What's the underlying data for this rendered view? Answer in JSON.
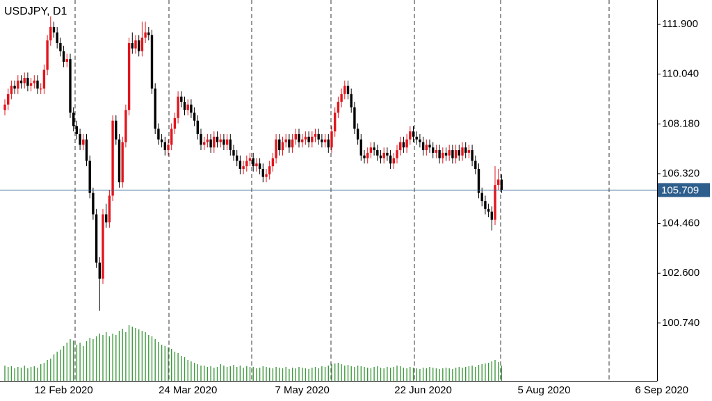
{
  "chart_data": {
    "type": "candlestick",
    "title": "USDJPY, D1",
    "categories": [
      null,
      null,
      null,
      null,
      null,
      null,
      null,
      null,
      null,
      null,
      null,
      null,
      null,
      null,
      null,
      null,
      null,
      null,
      "12 Feb 2020",
      null,
      null,
      null,
      null,
      null,
      null,
      null,
      null,
      null,
      null,
      null,
      null,
      null,
      null,
      null,
      null,
      null,
      null,
      null,
      null,
      null,
      null,
      null,
      null,
      null,
      null,
      null,
      null,
      null,
      null,
      null,
      null,
      null,
      null,
      null,
      null,
      null,
      "24 Mar 2020",
      null,
      null,
      null,
      null,
      null,
      null,
      null,
      null,
      null,
      null,
      null,
      null,
      null,
      null,
      null,
      null,
      null,
      null,
      null,
      null,
      null,
      null,
      null,
      null,
      null,
      null,
      null,
      null,
      null,
      null,
      null,
      null,
      null,
      null,
      "7 May 2020",
      null,
      null,
      null,
      null,
      null,
      null,
      null,
      null,
      null,
      null,
      null,
      null,
      null,
      null,
      null,
      null,
      null,
      null,
      null,
      null,
      null,
      null,
      null,
      null,
      null,
      null,
      null,
      null,
      null,
      null,
      null,
      null,
      null,
      null,
      null,
      null,
      "22 Jun 2020",
      null,
      null,
      null,
      null,
      null,
      null,
      null,
      null,
      null,
      null,
      null,
      null,
      null,
      null,
      null,
      null,
      null,
      null,
      null,
      null,
      null,
      null,
      null,
      null,
      null,
      null,
      null,
      null,
      null,
      null,
      null,
      null,
      null,
      null,
      null,
      null,
      "5 Aug 2020",
      null,
      null,
      null,
      null,
      null,
      null,
      null,
      null,
      null,
      null,
      null,
      null,
      null,
      null,
      null,
      null,
      null,
      null,
      null,
      null,
      null,
      null,
      null,
      null,
      null,
      null,
      null,
      null,
      null,
      null,
      null,
      null,
      null,
      null,
      null,
      "6 Sep 2020"
    ],
    "ohlc": [
      [
        108.7,
        109.1,
        108.5,
        108.9
      ],
      [
        108.9,
        109.5,
        108.7,
        109.3
      ],
      [
        109.3,
        109.8,
        109.1,
        109.6
      ],
      [
        109.6,
        109.8,
        109.3,
        109.5
      ],
      [
        109.5,
        110.0,
        109.3,
        109.8
      ],
      [
        109.8,
        110.0,
        109.5,
        109.7
      ],
      [
        109.7,
        110.1,
        109.5,
        109.9
      ],
      [
        109.9,
        110.1,
        109.4,
        109.6
      ],
      [
        109.6,
        109.9,
        109.4,
        109.7
      ],
      [
        109.7,
        110.0,
        109.5,
        109.8
      ],
      [
        109.8,
        110.0,
        109.3,
        109.5
      ],
      [
        109.5,
        109.7,
        109.3,
        109.5
      ],
      [
        109.5,
        110.4,
        109.3,
        110.2
      ],
      [
        110.2,
        111.5,
        110.0,
        111.3
      ],
      [
        111.3,
        112.2,
        111.1,
        111.8
      ],
      [
        111.8,
        112.0,
        111.4,
        111.6
      ],
      [
        111.6,
        111.8,
        111.0,
        111.2
      ],
      [
        111.2,
        111.4,
        110.7,
        110.9
      ],
      [
        110.9,
        111.1,
        110.3,
        110.5
      ],
      [
        110.5,
        110.8,
        110.3,
        110.6
      ],
      [
        110.6,
        110.8,
        108.4,
        108.6
      ],
      [
        108.6,
        108.8,
        107.9,
        108.1
      ],
      [
        108.1,
        108.3,
        107.6,
        107.8
      ],
      [
        107.8,
        108.0,
        107.2,
        107.4
      ],
      [
        107.4,
        107.8,
        107.2,
        107.6
      ],
      [
        107.6,
        107.8,
        106.6,
        106.8
      ],
      [
        106.8,
        107.0,
        105.4,
        105.6
      ],
      [
        105.6,
        105.8,
        104.6,
        104.8
      ],
      [
        104.8,
        105.0,
        102.8,
        103.0
      ],
      [
        103.0,
        103.2,
        101.2,
        102.4
      ],
      [
        102.4,
        105.0,
        102.2,
        104.8
      ],
      [
        104.8,
        105.2,
        104.3,
        104.5
      ],
      [
        104.5,
        105.7,
        104.3,
        105.5
      ],
      [
        105.5,
        108.5,
        105.3,
        108.3
      ],
      [
        108.3,
        108.5,
        107.4,
        107.6
      ],
      [
        107.6,
        107.8,
        105.8,
        106.0
      ],
      [
        106.0,
        107.7,
        105.8,
        107.5
      ],
      [
        107.5,
        108.9,
        107.3,
        108.7
      ],
      [
        108.7,
        111.4,
        108.5,
        111.2
      ],
      [
        111.2,
        111.6,
        110.8,
        111.0
      ],
      [
        111.0,
        111.5,
        110.8,
        111.3
      ],
      [
        111.3,
        111.5,
        110.7,
        110.9
      ],
      [
        110.9,
        112.0,
        110.7,
        111.4
      ],
      [
        111.4,
        112.0,
        111.2,
        111.6
      ],
      [
        111.6,
        111.8,
        111.3,
        111.5
      ],
      [
        111.5,
        111.7,
        109.3,
        109.5
      ],
      [
        109.5,
        109.7,
        107.8,
        108.0
      ],
      [
        108.0,
        108.2,
        107.4,
        107.6
      ],
      [
        107.6,
        107.8,
        107.3,
        107.5
      ],
      [
        107.5,
        107.7,
        107.0,
        107.2
      ],
      [
        107.2,
        107.6,
        107.0,
        107.4
      ],
      [
        107.4,
        108.2,
        107.2,
        108.0
      ],
      [
        108.0,
        108.6,
        107.8,
        108.4
      ],
      [
        108.4,
        109.4,
        108.2,
        109.2
      ],
      [
        109.2,
        109.4,
        108.8,
        109.0
      ],
      [
        109.0,
        109.2,
        108.5,
        108.7
      ],
      [
        108.7,
        109.1,
        108.5,
        108.9
      ],
      [
        108.9,
        109.1,
        108.4,
        108.6
      ],
      [
        108.6,
        108.8,
        108.1,
        108.3
      ],
      [
        108.3,
        108.5,
        107.6,
        107.8
      ],
      [
        107.8,
        108.0,
        107.2,
        107.4
      ],
      [
        107.4,
        107.7,
        107.2,
        107.5
      ],
      [
        107.5,
        107.8,
        107.3,
        107.6
      ],
      [
        107.6,
        107.8,
        107.1,
        107.3
      ],
      [
        107.3,
        107.9,
        107.1,
        107.7
      ],
      [
        107.7,
        107.9,
        107.3,
        107.5
      ],
      [
        107.5,
        107.8,
        107.3,
        107.6
      ],
      [
        107.6,
        107.8,
        107.2,
        107.4
      ],
      [
        107.4,
        107.8,
        107.2,
        107.6
      ],
      [
        107.6,
        107.8,
        107.0,
        107.2
      ],
      [
        107.2,
        107.4,
        106.8,
        107.0
      ],
      [
        107.0,
        107.2,
        106.6,
        106.8
      ],
      [
        106.8,
        107.0,
        106.3,
        106.5
      ],
      [
        106.5,
        106.8,
        106.3,
        106.6
      ],
      [
        106.6,
        107.0,
        106.4,
        106.8
      ],
      [
        106.8,
        107.1,
        106.6,
        106.9
      ],
      [
        106.9,
        107.1,
        106.4,
        106.6
      ],
      [
        106.6,
        106.9,
        106.4,
        106.7
      ],
      [
        106.7,
        106.9,
        106.3,
        106.5
      ],
      [
        106.5,
        106.7,
        106.0,
        106.2
      ],
      [
        106.2,
        106.5,
        106.0,
        106.3
      ],
      [
        106.3,
        106.8,
        106.1,
        106.6
      ],
      [
        106.6,
        107.1,
        106.4,
        106.9
      ],
      [
        106.9,
        107.8,
        106.7,
        107.6
      ],
      [
        107.6,
        107.8,
        107.0,
        107.2
      ],
      [
        107.2,
        107.7,
        107.0,
        107.5
      ],
      [
        107.5,
        107.8,
        107.3,
        107.6
      ],
      [
        107.6,
        107.8,
        107.1,
        107.3
      ],
      [
        107.3,
        107.8,
        107.1,
        107.6
      ],
      [
        107.6,
        108.0,
        107.4,
        107.8
      ],
      [
        107.8,
        108.0,
        107.3,
        107.5
      ],
      [
        107.5,
        107.8,
        107.3,
        107.6
      ],
      [
        107.6,
        107.9,
        107.4,
        107.7
      ],
      [
        107.7,
        107.9,
        107.3,
        107.5
      ],
      [
        107.5,
        107.9,
        107.3,
        107.7
      ],
      [
        107.7,
        108.0,
        107.5,
        107.8
      ],
      [
        107.8,
        108.0,
        107.4,
        107.6
      ],
      [
        107.6,
        107.8,
        107.3,
        107.5
      ],
      [
        107.5,
        107.8,
        107.3,
        107.6
      ],
      [
        107.6,
        107.8,
        107.1,
        107.3
      ],
      [
        107.3,
        108.1,
        107.1,
        107.9
      ],
      [
        107.9,
        108.8,
        107.7,
        108.6
      ],
      [
        108.6,
        109.2,
        108.4,
        109.0
      ],
      [
        109.0,
        109.5,
        108.8,
        109.3
      ],
      [
        109.3,
        109.8,
        109.1,
        109.6
      ],
      [
        109.6,
        109.8,
        109.1,
        109.3
      ],
      [
        109.3,
        109.5,
        108.6,
        108.8
      ],
      [
        108.8,
        109.0,
        107.8,
        108.0
      ],
      [
        108.0,
        108.2,
        107.4,
        107.6
      ],
      [
        107.6,
        107.8,
        106.8,
        107.0
      ],
      [
        107.0,
        107.2,
        106.7,
        106.9
      ],
      [
        106.9,
        107.3,
        106.7,
        107.1
      ],
      [
        107.1,
        107.5,
        106.9,
        107.3
      ],
      [
        107.3,
        107.5,
        107.0,
        107.2
      ],
      [
        107.2,
        107.4,
        106.8,
        107.0
      ],
      [
        107.0,
        107.2,
        106.7,
        106.9
      ],
      [
        106.9,
        107.3,
        106.7,
        107.1
      ],
      [
        107.1,
        107.3,
        106.8,
        107.0
      ],
      [
        107.0,
        107.2,
        106.5,
        106.7
      ],
      [
        106.7,
        107.1,
        106.5,
        106.9
      ],
      [
        106.9,
        107.4,
        106.7,
        107.2
      ],
      [
        107.2,
        107.7,
        107.0,
        107.5
      ],
      [
        107.5,
        107.7,
        107.1,
        107.3
      ],
      [
        107.3,
        107.8,
        107.1,
        107.6
      ],
      [
        107.6,
        108.1,
        107.4,
        107.9
      ],
      [
        107.9,
        108.1,
        107.5,
        107.7
      ],
      [
        107.7,
        107.9,
        107.4,
        107.6
      ],
      [
        107.6,
        107.8,
        107.3,
        107.5
      ],
      [
        107.5,
        107.7,
        107.0,
        107.2
      ],
      [
        107.2,
        107.6,
        107.0,
        107.4
      ],
      [
        107.4,
        107.6,
        107.1,
        107.3
      ],
      [
        107.3,
        107.5,
        106.9,
        107.1
      ],
      [
        107.1,
        107.4,
        106.9,
        107.2
      ],
      [
        107.2,
        107.4,
        106.7,
        106.9
      ],
      [
        106.9,
        107.3,
        106.7,
        107.1
      ],
      [
        107.1,
        107.3,
        106.8,
        107.0
      ],
      [
        107.0,
        107.4,
        106.8,
        107.2
      ],
      [
        107.2,
        107.4,
        106.7,
        106.9
      ],
      [
        106.9,
        107.4,
        106.7,
        107.2
      ],
      [
        107.2,
        107.4,
        106.8,
        107.0
      ],
      [
        107.0,
        107.5,
        106.8,
        107.3
      ],
      [
        107.3,
        107.5,
        106.9,
        107.1
      ],
      [
        107.1,
        107.4,
        106.9,
        107.2
      ],
      [
        107.2,
        107.4,
        106.6,
        106.8
      ],
      [
        106.8,
        107.0,
        106.3,
        106.5
      ],
      [
        106.5,
        106.7,
        105.4,
        105.6
      ],
      [
        105.6,
        105.8,
        105.1,
        105.3
      ],
      [
        105.3,
        105.5,
        104.8,
        105.0
      ],
      [
        105.0,
        105.2,
        104.7,
        104.9
      ],
      [
        104.9,
        105.1,
        104.2,
        104.6
      ],
      [
        104.6,
        106.6,
        104.4,
        105.9
      ],
      [
        105.9,
        106.5,
        105.7,
        106.1
      ],
      [
        106.1,
        106.3,
        105.6,
        105.709
      ],
      null,
      null,
      null,
      null,
      null,
      null,
      null,
      null,
      null,
      null,
      null,
      null,
      null,
      null,
      null,
      null,
      null,
      null,
      null,
      null,
      null,
      null,
      null,
      null,
      null,
      null,
      null,
      null,
      null,
      null,
      null,
      null,
      null,
      null,
      null,
      null,
      null,
      null,
      null,
      null,
      null,
      null,
      null,
      null,
      null,
      null,
      null,
      null,
      null
    ],
    "volumes": [
      22,
      20,
      21,
      18,
      20,
      19,
      22,
      18,
      20,
      21,
      19,
      24,
      26,
      30,
      32,
      38,
      42,
      45,
      50,
      55,
      60,
      58,
      52,
      55,
      50,
      57,
      62,
      60,
      64,
      68,
      66,
      70,
      64,
      68,
      66,
      72,
      75,
      70,
      80,
      78,
      76,
      74,
      72,
      70,
      66,
      64,
      60,
      56,
      52,
      50,
      48,
      46,
      42,
      40,
      36,
      34,
      30,
      28,
      26,
      24,
      22,
      22,
      20,
      21,
      19,
      20,
      24,
      22,
      20,
      21,
      23,
      20,
      22,
      19,
      21,
      20,
      20,
      18,
      19,
      21,
      20,
      19,
      18,
      20,
      19,
      18,
      20,
      17,
      19,
      18,
      20,
      19,
      18,
      17,
      19,
      20,
      18,
      21,
      20,
      22,
      24,
      25,
      26,
      24,
      22,
      23,
      21,
      20,
      22,
      21,
      20,
      19,
      18,
      20,
      21,
      19,
      18,
      20,
      19,
      20,
      22,
      21,
      19,
      18,
      20,
      19,
      18,
      17,
      19,
      18,
      20,
      19,
      18,
      17,
      18,
      19,
      18,
      17,
      19,
      20,
      19,
      20,
      21,
      22,
      20,
      23,
      24,
      25,
      26,
      28,
      30,
      27,
      22,
      null,
      null,
      null,
      null,
      null,
      null,
      null,
      null,
      null,
      null,
      null,
      null,
      null,
      null,
      null,
      null,
      null,
      null,
      null,
      null,
      null,
      null,
      null,
      null,
      null,
      null,
      null,
      null,
      null,
      null,
      null,
      null,
      null,
      null,
      null,
      null,
      null,
      null,
      null,
      null,
      null,
      null,
      null,
      null,
      null,
      null,
      null,
      null,
      null
    ],
    "up_color": "#e2151b",
    "down_color": "#000000",
    "volume_color": "#3f9a3f",
    "ylim": [
      98.58,
      112.81
    ],
    "yticks": [
      {
        "value": 111.9,
        "label": "111.900"
      },
      {
        "value": 110.04,
        "label": "110.040"
      },
      {
        "value": 108.18,
        "label": "108.180"
      },
      {
        "value": 106.32,
        "label": "106.320"
      },
      {
        "value": 104.46,
        "label": "104.460"
      },
      {
        "value": 102.6,
        "label": "102.600"
      },
      {
        "value": 100.74,
        "label": "100.740"
      }
    ],
    "last_price": {
      "value": 105.709,
      "label": "105.709"
    },
    "last_price_color": "#2d5e8c"
  }
}
